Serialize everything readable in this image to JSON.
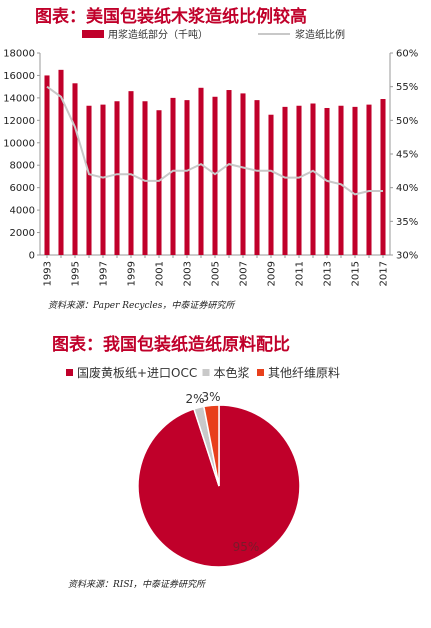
{
  "chart1": {
    "title": "图表：美国包装纸木浆造纸比例较高",
    "source": "资料来源：Paper Recycles，中泰证券研究所",
    "colors": {
      "bar": "#c0002a",
      "line": "#c8c8c8"
    }
  },
  "chart2": {
    "title": "图表：我国包装纸造纸原料配比",
    "source": "资料来源：RISI，中泰证券研究所",
    "colors": {
      "slices": [
        "#c0002a",
        "#c9c9c9",
        "#e8401c"
      ]
    }
  },
  "chart_data": [
    {
      "type": "bar",
      "categories": [
        "1993",
        "1994",
        "1995",
        "1996",
        "1997",
        "1998",
        "1999",
        "2000",
        "2001",
        "2002",
        "2003",
        "2004",
        "2005",
        "2006",
        "2007",
        "2008",
        "2009",
        "2010",
        "2011",
        "2012",
        "2013",
        "2014",
        "2015",
        "2016",
        "2017"
      ],
      "series": [
        {
          "name": "用浆造纸部分（千吨）",
          "type": "bar",
          "axis": "left",
          "values": [
            16000,
            16500,
            15300,
            13300,
            13400,
            13700,
            14600,
            13700,
            12900,
            14000,
            13800,
            14900,
            14100,
            14700,
            14400,
            13800,
            12500,
            13200,
            13300,
            13500,
            13100,
            13300,
            13200,
            13400,
            13900
          ]
        },
        {
          "name": "浆造纸比例",
          "type": "line",
          "axis": "right",
          "values": [
            0.55,
            0.535,
            0.49,
            0.42,
            0.415,
            0.42,
            0.42,
            0.41,
            0.41,
            0.425,
            0.425,
            0.435,
            0.42,
            0.435,
            0.43,
            0.425,
            0.425,
            0.415,
            0.415,
            0.425,
            0.41,
            0.405,
            0.39,
            0.395,
            0.395
          ]
        }
      ],
      "xlabel": "",
      "ylabel": "",
      "ylim": [
        0,
        18000
      ],
      "yticks": [
        "0",
        "2000",
        "4000",
        "6000",
        "8000",
        "10000",
        "12000",
        "14000",
        "16000",
        "18000"
      ],
      "y2lim": [
        0.3,
        0.6
      ],
      "y2ticks": [
        "30%",
        "35%",
        "40%",
        "45%",
        "50%",
        "55%",
        "60%"
      ],
      "xticks_shown": [
        "1993",
        "1995",
        "1997",
        "1999",
        "2001",
        "2003",
        "2005",
        "2007",
        "2009",
        "2011",
        "2013",
        "2015",
        "2017"
      ],
      "legend": "top",
      "grid": false
    },
    {
      "type": "pie",
      "categories": [
        "国废黄板纸+进口OCC",
        "本色浆",
        "其他纤维原料"
      ],
      "values": [
        95,
        2,
        3
      ],
      "labels": [
        "95%",
        "2%",
        "3%"
      ],
      "legend": "top"
    }
  ]
}
